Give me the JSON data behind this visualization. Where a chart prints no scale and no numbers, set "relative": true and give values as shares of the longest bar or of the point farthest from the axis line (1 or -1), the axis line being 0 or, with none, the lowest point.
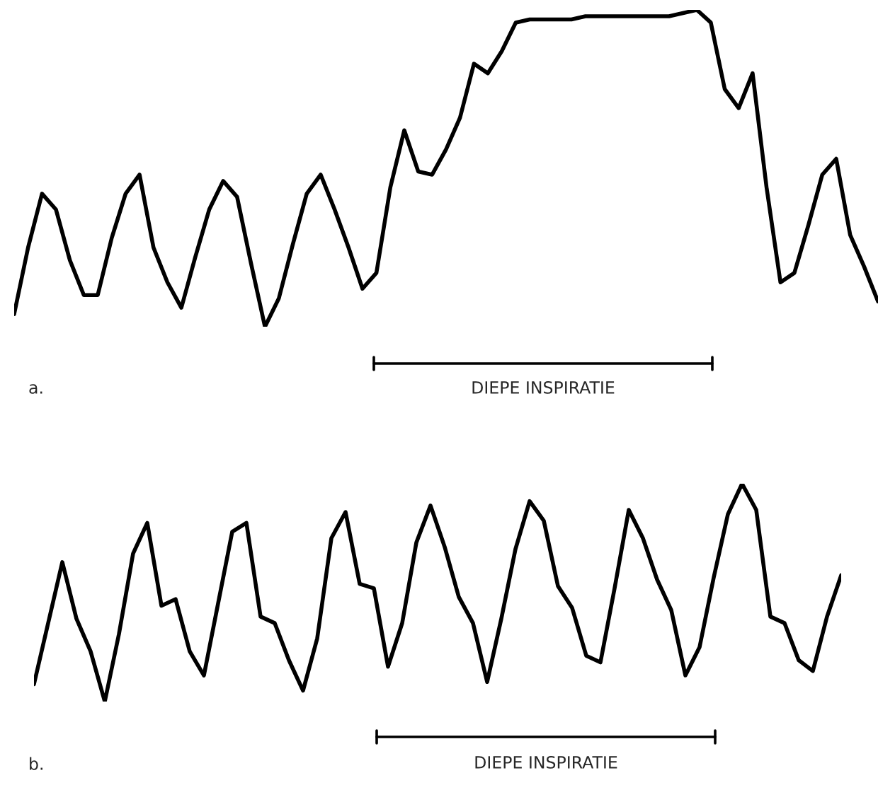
{
  "chart_data": [
    {
      "type": "line",
      "relative": true,
      "legend": false,
      "marker": "none",
      "line_style": "solid",
      "categories": [
        null,
        null,
        null,
        null,
        null,
        null,
        null,
        null,
        null,
        null,
        null,
        null,
        null,
        null,
        null,
        null,
        null,
        null,
        null,
        null,
        null,
        null,
        null,
        null,
        null,
        null,
        null,
        null,
        null,
        null,
        null,
        null,
        null,
        null,
        null,
        null,
        null,
        null,
        null,
        null,
        null,
        null,
        null,
        null,
        null,
        null,
        null,
        null,
        null,
        null,
        null,
        null,
        null,
        null,
        null,
        null,
        null,
        null,
        null,
        null,
        null,
        null,
        null
      ],
      "series": [
        {
          "color": "#000000",
          "values": [
            0.04,
            0.25,
            0.42,
            0.37,
            0.21,
            0.1,
            0.1,
            0.28,
            0.42,
            0.48,
            0.25,
            0.14,
            0.06,
            0.22,
            0.37,
            0.46,
            0.41,
            0.2,
            0.0,
            0.09,
            0.26,
            0.42,
            0.48,
            0.37,
            0.25,
            0.12,
            0.17,
            0.44,
            0.62,
            0.49,
            0.48,
            0.56,
            0.66,
            0.83,
            0.8,
            0.87,
            0.96,
            0.97,
            0.97,
            0.97,
            0.97,
            0.98,
            0.98,
            0.98,
            0.98,
            0.98,
            0.98,
            0.98,
            0.99,
            1.0,
            0.96,
            0.75,
            0.69,
            0.8,
            0.44,
            0.14,
            0.17,
            0.32,
            0.48,
            0.53,
            0.29,
            0.19,
            0.08
          ]
        }
      ],
      "annotations": [
        "DIEPE INSPIRATIE",
        "a."
      ]
    },
    {
      "type": "line",
      "relative": true,
      "legend": false,
      "marker": "none",
      "line_style": "solid",
      "categories": [
        null,
        null,
        null,
        null,
        null,
        null,
        null,
        null,
        null,
        null,
        null,
        null,
        null,
        null,
        null,
        null,
        null,
        null,
        null,
        null,
        null,
        null,
        null,
        null,
        null,
        null,
        null,
        null,
        null,
        null,
        null,
        null,
        null,
        null,
        null,
        null,
        null,
        null,
        null,
        null,
        null,
        null,
        null,
        null,
        null,
        null,
        null,
        null,
        null,
        null,
        null,
        null,
        null,
        null,
        null,
        null,
        null,
        null
      ],
      "series": [
        {
          "color": "#000000",
          "values": [
            0.08,
            0.36,
            0.64,
            0.38,
            0.23,
            0.0,
            0.31,
            0.68,
            0.82,
            0.44,
            0.47,
            0.23,
            0.12,
            0.45,
            0.78,
            0.82,
            0.39,
            0.36,
            0.19,
            0.05,
            0.29,
            0.75,
            0.87,
            0.54,
            0.52,
            0.16,
            0.36,
            0.73,
            0.9,
            0.71,
            0.48,
            0.36,
            0.09,
            0.38,
            0.7,
            0.92,
            0.83,
            0.53,
            0.43,
            0.21,
            0.18,
            0.52,
            0.88,
            0.75,
            0.56,
            0.42,
            0.12,
            0.25,
            0.57,
            0.86,
            1.0,
            0.88,
            0.39,
            0.36,
            0.19,
            0.14,
            0.39,
            0.58
          ]
        }
      ],
      "annotations": [
        "DIEPE INSPIRATIE",
        "b."
      ]
    }
  ]
}
